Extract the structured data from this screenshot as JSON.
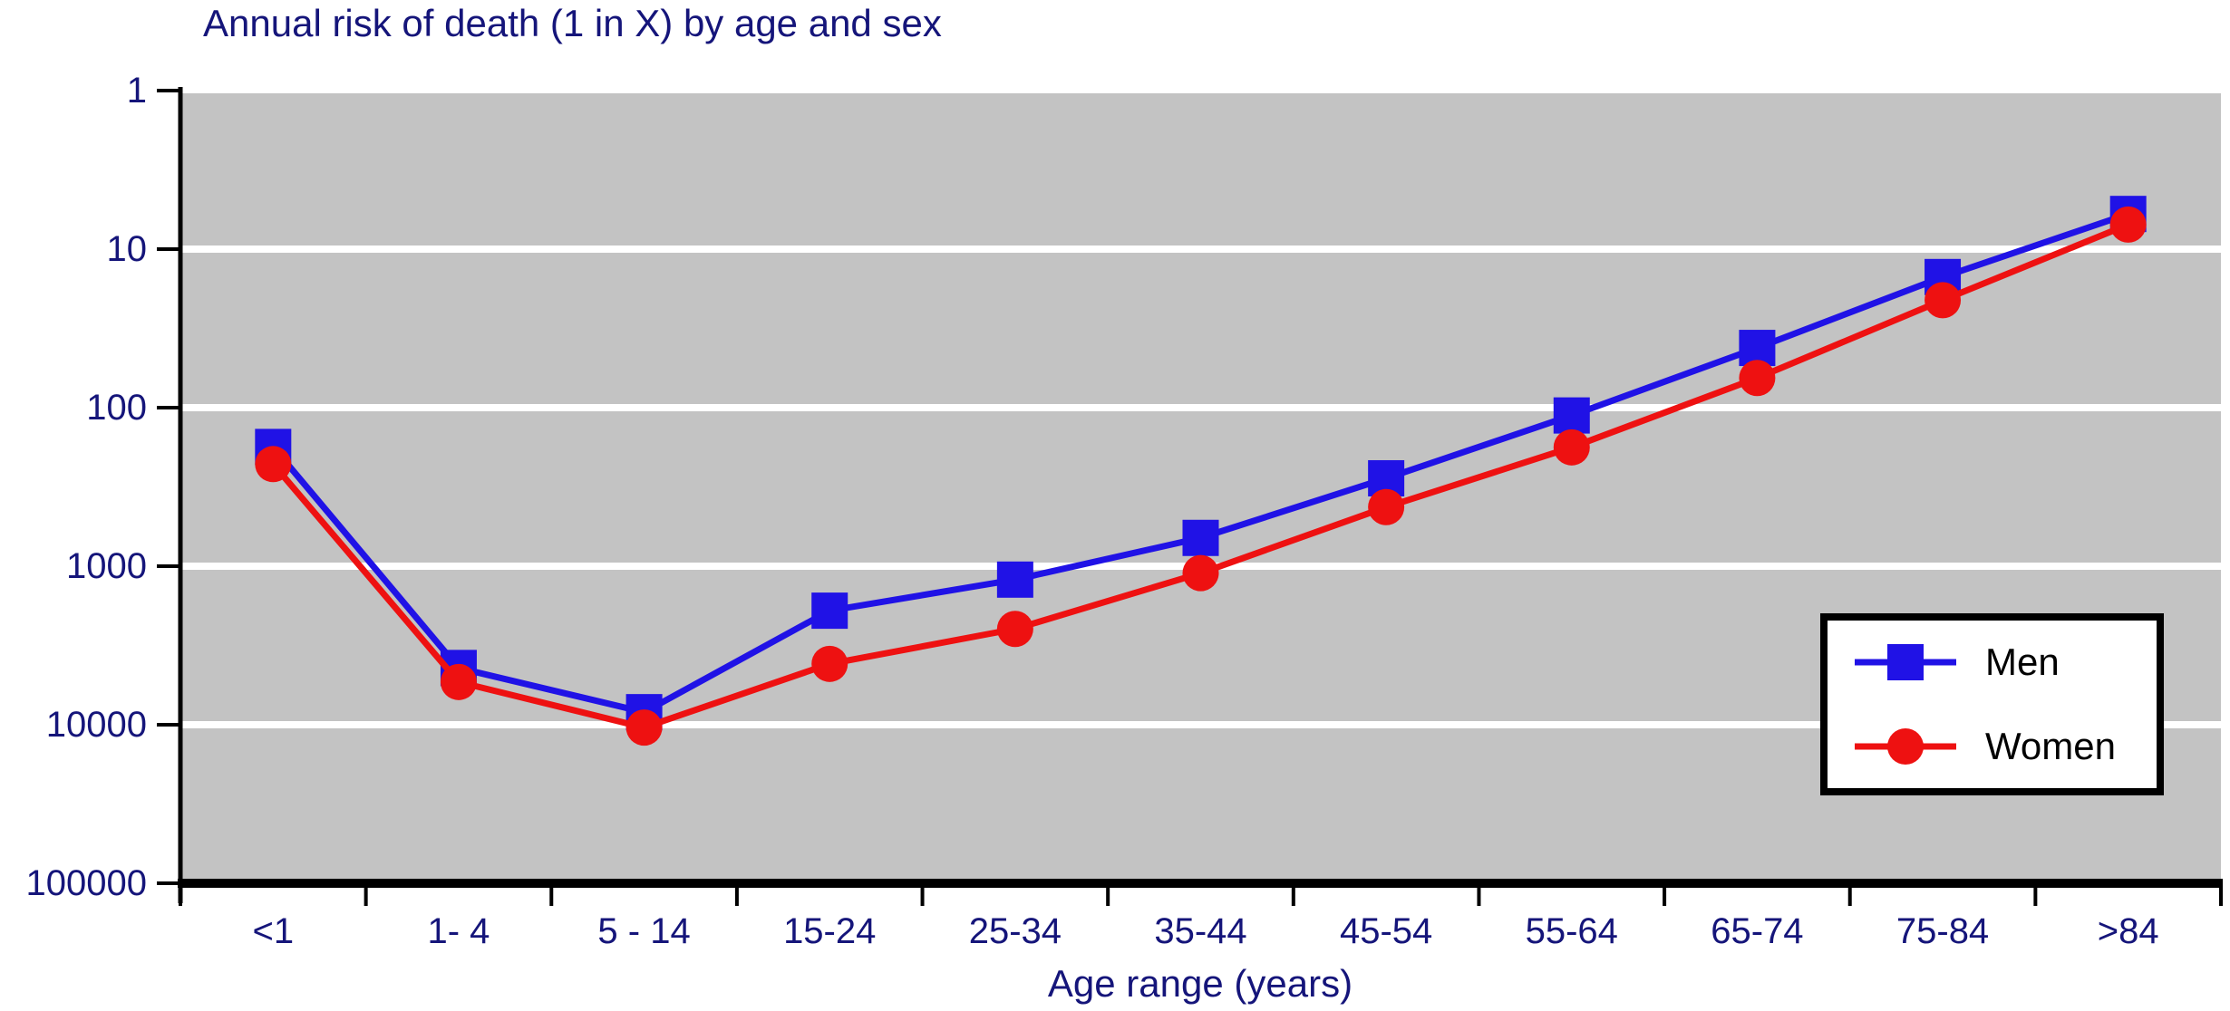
{
  "chart_data": {
    "type": "line",
    "title": "Annual risk of death (1 in X) by age and sex",
    "xlabel": "Age range (years)",
    "ylabel": "",
    "y_axis": {
      "scale": "log",
      "direction": "inverted",
      "top_value": 1,
      "bottom_value": 100000,
      "ticks": [
        1,
        10,
        100,
        1000,
        10000,
        100000
      ],
      "tick_labels": [
        "1",
        "10",
        "100",
        "1000",
        "10000",
        "100000"
      ]
    },
    "categories": [
      "<1",
      "1- 4",
      "5 - 14",
      "15-24",
      "25-34",
      "35-44",
      "45-54",
      "55-64",
      "65-74",
      "75-84",
      ">84"
    ],
    "series": [
      {
        "name": "Men",
        "marker": "square",
        "color": "#2012e6",
        "values": [
          177,
          4386,
          8333,
          1908,
          1215,
          663,
          279,
          112,
          42,
          15,
          6
        ]
      },
      {
        "name": "Women",
        "marker": "circle",
        "color": "#ee1111",
        "values": [
          227,
          5376,
          10417,
          4132,
          2488,
          1106,
          424,
          178,
          65,
          21,
          7
        ]
      }
    ],
    "legend": {
      "entries": [
        "Men",
        "Women"
      ],
      "position": "middle-right",
      "background": "#ffffff",
      "border_color": "#000000",
      "text_color": "#000000"
    },
    "grid": {
      "visible": true,
      "color": "#ffffff"
    },
    "plot_background": "#c3c3c3",
    "page_background": "#ffffff",
    "text_color": "#15157a",
    "axis_color": "#000000"
  }
}
